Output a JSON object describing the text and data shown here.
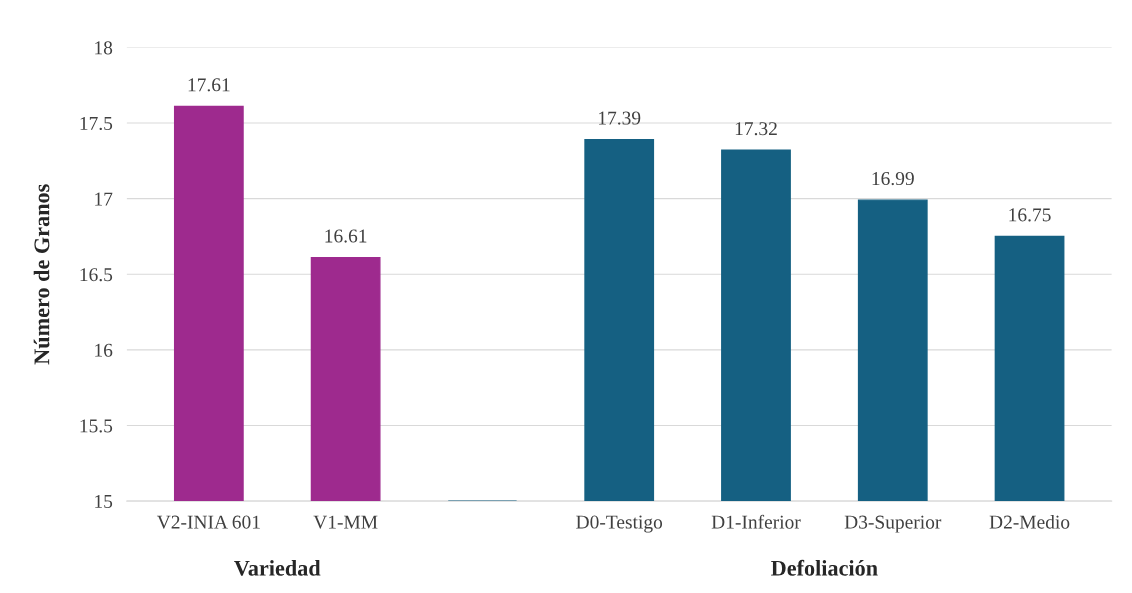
{
  "chart_data": {
    "type": "bar",
    "ylabel": "Número de Granos",
    "categories": [
      "V2-INIA 601",
      "V1-MM",
      null,
      "D0-Testigo",
      "D1-Inferior",
      "D3-Superior",
      "D2-Medio"
    ],
    "values": [
      17.61,
      16.61,
      15,
      17.39,
      17.32,
      16.99,
      16.75
    ],
    "value_labels": [
      "17.61",
      "16.61",
      null,
      "17.39",
      "17.32",
      "16.99",
      "16.75"
    ],
    "colors": [
      "#9e2a8e",
      "#9e2a8e",
      "#156082",
      "#156082",
      "#156082",
      "#156082",
      "#156082"
    ],
    "ylim": [
      15,
      18
    ],
    "yticks": [
      15,
      15.5,
      16,
      16.5,
      17,
      17.5,
      18
    ],
    "grid": "y",
    "annotations": [
      "Variedad",
      "Defoliación"
    ]
  }
}
